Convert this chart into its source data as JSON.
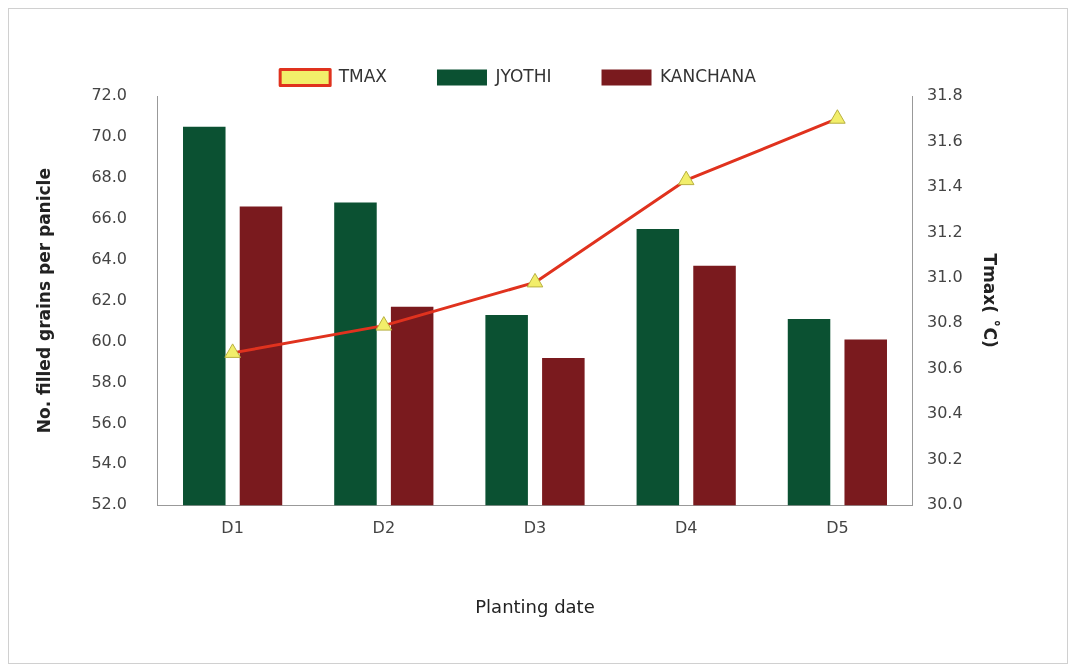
{
  "chart_data": {
    "type": "bar",
    "xlabel": "Planting date",
    "ylabel": "No. filled grains per panicle",
    "y2label": "Tmax( ˚C)",
    "categories": [
      "D1",
      "D2",
      "D3",
      "D4",
      "D5"
    ],
    "series": [
      {
        "name": "JYOTHI",
        "color": "#0b5132",
        "values": [
          70.5,
          66.8,
          61.3,
          65.5,
          61.1
        ]
      },
      {
        "name": "KANCHANA",
        "color": "#7a1a1e",
        "values": [
          66.6,
          61.7,
          59.2,
          63.7,
          60.1
        ]
      },
      {
        "name": "TMAX",
        "type": "line",
        "axis": "y2",
        "color": "#e0321e",
        "marker": "triangle",
        "values": [
          30.67,
          30.79,
          30.98,
          31.43,
          31.7
        ]
      }
    ],
    "ylim": [
      52,
      72
    ],
    "yticks": [
      {
        "value": 52,
        "label": "52.0"
      },
      {
        "value": 54,
        "label": "54.0"
      },
      {
        "value": 56,
        "label": "56.0"
      },
      {
        "value": 58,
        "label": "58.0"
      },
      {
        "value": 60,
        "label": "60.0"
      },
      {
        "value": 62,
        "label": "62.0"
      },
      {
        "value": 64,
        "label": "64.0"
      },
      {
        "value": 66,
        "label": "66.0"
      },
      {
        "value": 68,
        "label": "68.0"
      },
      {
        "value": 70,
        "label": "70.0"
      },
      {
        "value": 72,
        "label": "72.0"
      }
    ],
    "y2lim": [
      30,
      31.8
    ],
    "y2ticks": [
      {
        "value": 30,
        "label": "30.0"
      },
      {
        "value": 30.2,
        "label": "30.2"
      },
      {
        "value": 30.4,
        "label": "30.4"
      },
      {
        "value": 30.6,
        "label": "30.6"
      },
      {
        "value": 30.8,
        "label": "30.8"
      },
      {
        "value": 31,
        "label": "31.0"
      },
      {
        "value": 31.2,
        "label": "31.2"
      },
      {
        "value": 31.4,
        "label": "31.4"
      },
      {
        "value": 31.6,
        "label": "31.6"
      },
      {
        "value": 31.8,
        "label": "31.8"
      }
    ],
    "grid": false,
    "legend": "top"
  }
}
